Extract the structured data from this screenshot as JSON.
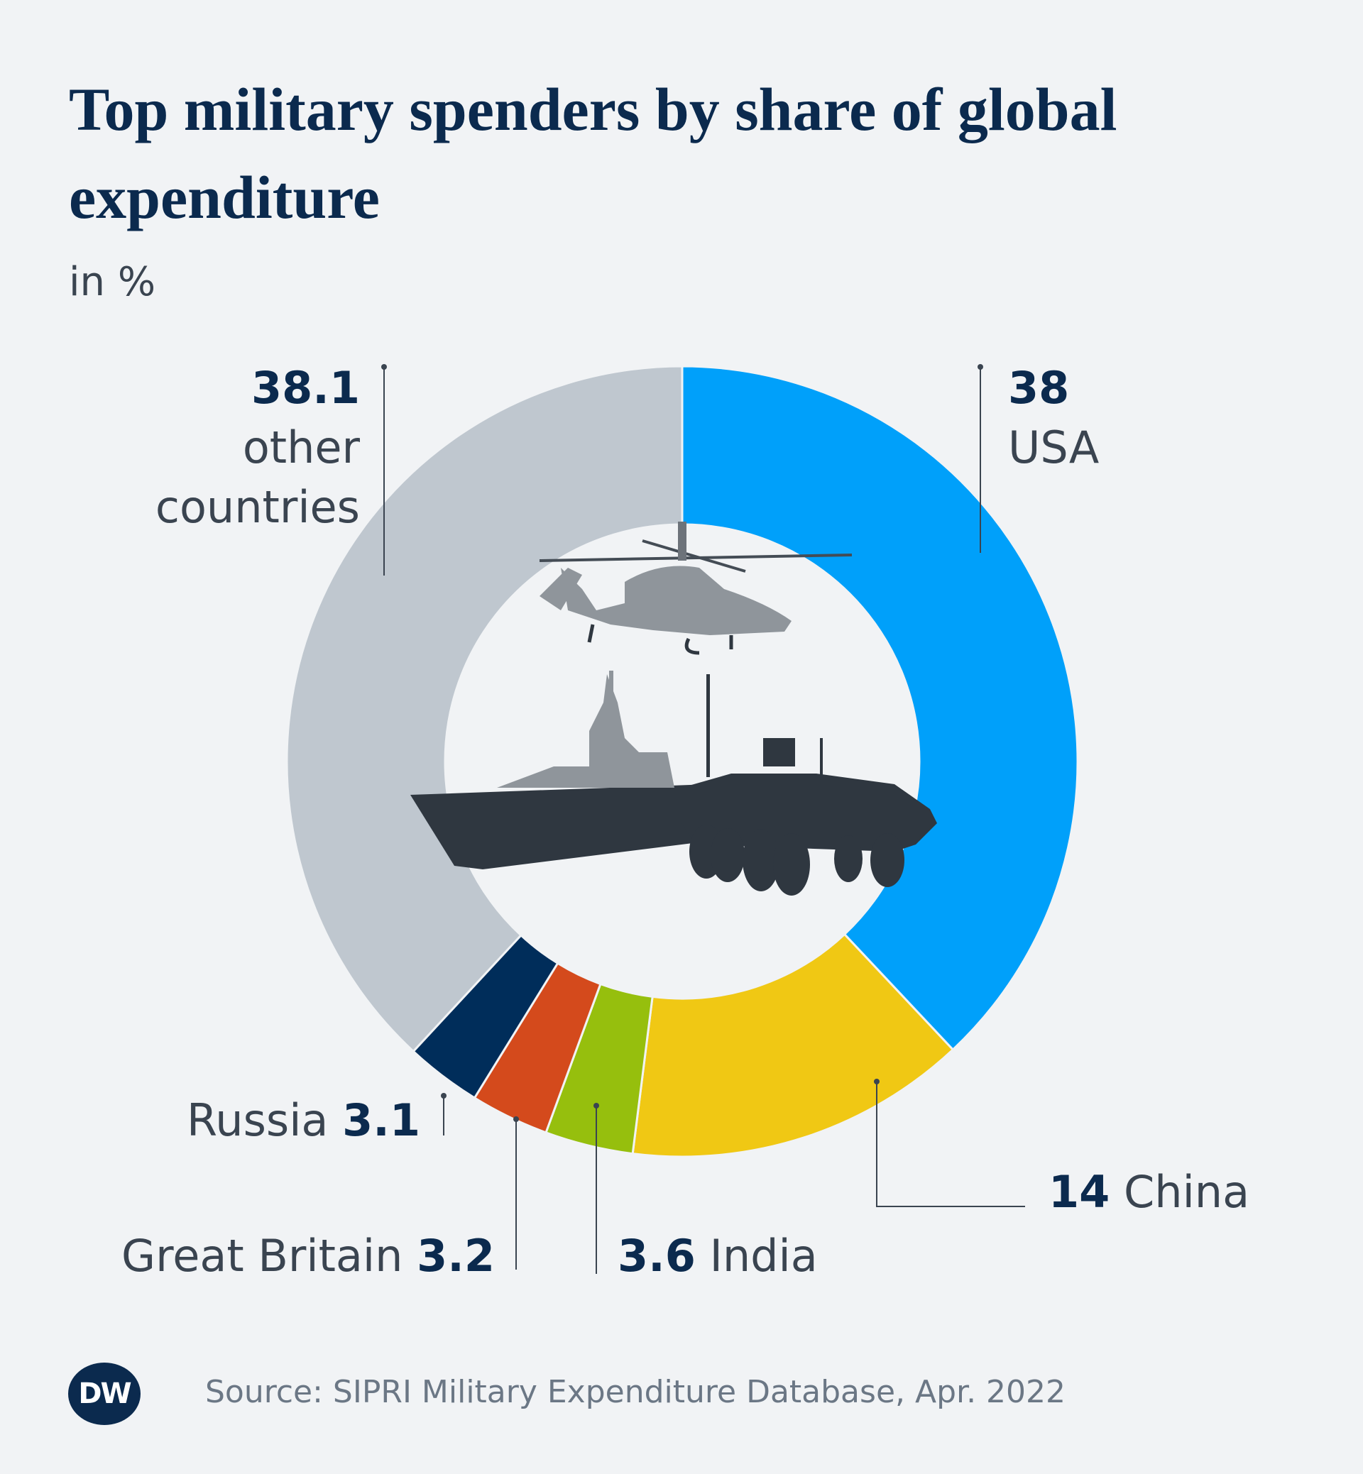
{
  "chart_data": {
    "type": "donut",
    "title": "Top military spenders by share of global expenditure",
    "subtitle": "in %",
    "categories": [
      "USA",
      "China",
      "India",
      "Great Britain",
      "Russia",
      "other countries"
    ],
    "values": [
      38,
      14,
      3.6,
      3.2,
      3.1,
      38.1
    ],
    "colors": [
      "#00a0fa",
      "#f0c814",
      "#96bf0d",
      "#d44a1c",
      "#002d5a",
      "#bfc7cf"
    ]
  },
  "footer": {
    "logo": "DW",
    "source": "Source: SIPRI Military Expenditure Database, Apr. 2022"
  }
}
